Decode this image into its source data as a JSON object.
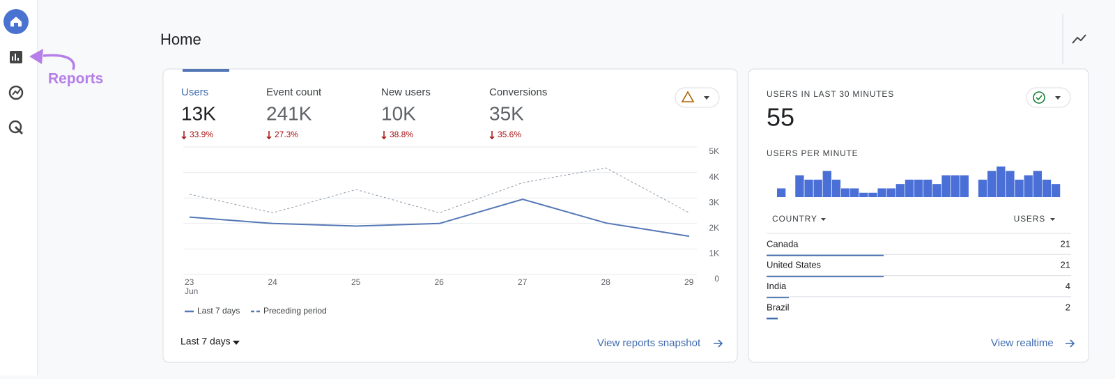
{
  "sidebar": {
    "annotation": "Reports"
  },
  "header": {
    "title": "Home"
  },
  "metrics": [
    {
      "label": "Users",
      "value": "13K",
      "change": "33.9%"
    },
    {
      "label": "Event count",
      "value": "241K",
      "change": "27.3%"
    },
    {
      "label": "New users",
      "value": "10K",
      "change": "38.8%"
    },
    {
      "label": "Conversions",
      "value": "35K",
      "change": "35.6%"
    }
  ],
  "chart_data": [
    {
      "type": "line",
      "categories": [
        "23",
        "24",
        "25",
        "26",
        "27",
        "28",
        "29"
      ],
      "x_sublabel": "Jun",
      "series": [
        {
          "name": "Last 7 days",
          "color": "#5477b5",
          "values": [
            2250,
            2000,
            1900,
            2000,
            2950,
            2020,
            1500
          ]
        },
        {
          "name": "Preceding period",
          "color": "#8f98a6",
          "values": [
            3150,
            2420,
            3330,
            2420,
            3600,
            4180,
            2420
          ]
        }
      ],
      "ylim": [
        0,
        5000
      ],
      "yticks": [
        0,
        {
          "value": 1000,
          "label": "1K"
        },
        {
          "value": 2000,
          "label": "2K"
        },
        {
          "value": 3000,
          "label": "3K"
        },
        {
          "value": 4000,
          "label": "4K"
        },
        {
          "value": 5000,
          "label": "5K"
        }
      ],
      "grid": true
    },
    {
      "type": "bar",
      "title": "USERS PER MINUTE",
      "color": "#4a6fd6",
      "values": [
        2,
        0,
        5,
        4,
        4,
        6,
        4,
        2,
        2,
        1,
        1,
        2,
        2,
        3,
        4,
        4,
        4,
        3,
        5,
        5,
        5,
        0,
        4,
        6,
        7,
        6,
        4,
        5,
        6,
        4,
        3
      ],
      "ylim": [
        0,
        7
      ]
    }
  ],
  "realtime": {
    "title": "USERS IN LAST 30 MINUTES",
    "value": "55"
  },
  "table": {
    "columns": [
      "COUNTRY",
      "USERS"
    ],
    "rows": [
      {
        "country": "Canada",
        "users": 21
      },
      {
        "country": "United States",
        "users": 21
      },
      {
        "country": "India",
        "users": 4
      },
      {
        "country": "Brazil",
        "users": 2
      }
    ]
  },
  "controls": {
    "range": "Last 7 days",
    "snapshot_link": "View reports snapshot",
    "realtime_link": "View realtime"
  }
}
